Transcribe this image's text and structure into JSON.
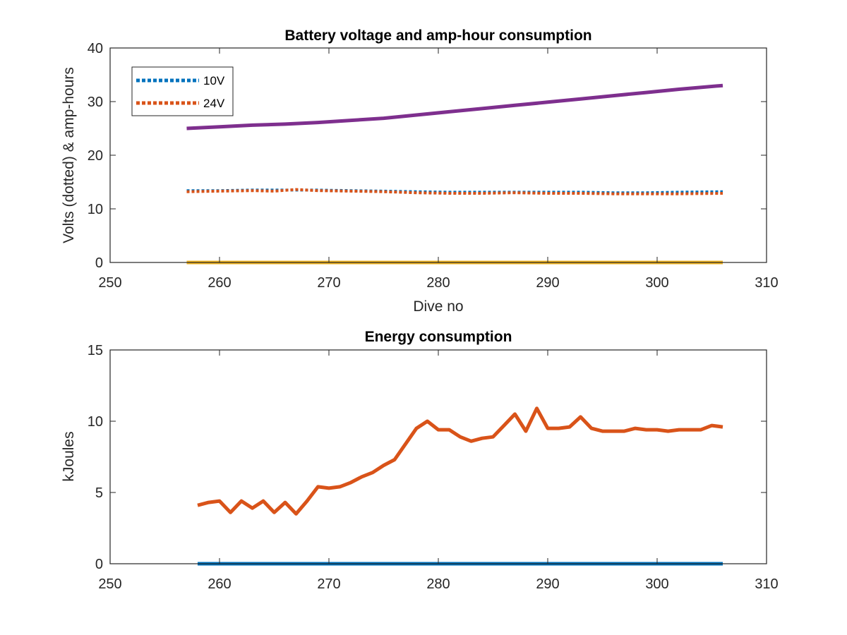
{
  "chart_data": [
    {
      "type": "line",
      "title": "Battery voltage and amp-hour consumption",
      "xlabel": "Dive no",
      "ylabel": "Volts (dotted) & amp-hours",
      "xlim": [
        250,
        310
      ],
      "ylim": [
        0,
        40
      ],
      "xticks": [
        250,
        260,
        270,
        280,
        290,
        300,
        310
      ],
      "yticks": [
        0,
        10,
        20,
        30,
        40
      ],
      "grid": false,
      "legend": {
        "position": "top-left",
        "entries": [
          "10V",
          "24V"
        ]
      },
      "colors": {
        "10V": "#0072BD",
        "24V": "#D95319",
        "amp_hours": "#7E2F8E",
        "zero": "#EDB120"
      },
      "series": [
        {
          "name": "10V",
          "style": "dotted",
          "color": "#0072BD",
          "x": [
            257,
            260,
            263,
            266,
            269,
            272,
            275,
            278,
            281,
            284,
            287,
            290,
            293,
            296,
            299,
            302,
            306
          ],
          "y": [
            13.4,
            13.4,
            13.5,
            13.5,
            13.5,
            13.4,
            13.3,
            13.2,
            13.1,
            13.1,
            13.1,
            13.1,
            13.1,
            13.0,
            13.0,
            13.1,
            13.2
          ]
        },
        {
          "name": "24V",
          "style": "dotted",
          "color": "#D95319",
          "x": [
            257,
            260,
            263,
            265,
            267,
            269,
            272,
            275,
            278,
            281,
            284,
            287,
            290,
            293,
            296,
            299,
            302,
            306
          ],
          "y": [
            13.2,
            13.3,
            13.4,
            13.3,
            13.6,
            13.4,
            13.3,
            13.2,
            13.0,
            12.9,
            12.9,
            13.0,
            12.9,
            12.9,
            12.8,
            12.8,
            12.8,
            12.9
          ]
        },
        {
          "style": "solid",
          "color": "#7E2F8E",
          "x": [
            257,
            260,
            263,
            266,
            269,
            272,
            275,
            278,
            281,
            284,
            287,
            290,
            293,
            296,
            299,
            302,
            306
          ],
          "y": [
            25.0,
            25.3,
            25.6,
            25.8,
            26.1,
            26.5,
            26.9,
            27.5,
            28.1,
            28.7,
            29.3,
            29.9,
            30.5,
            31.1,
            31.7,
            32.3,
            33.0
          ]
        },
        {
          "style": "solid",
          "color": "#EDB120",
          "x": [
            257,
            306
          ],
          "y": [
            0,
            0
          ]
        }
      ]
    },
    {
      "type": "line",
      "title": "Energy consumption",
      "xlabel": "",
      "ylabel": "kJoules",
      "xlim": [
        250,
        310
      ],
      "ylim": [
        0,
        15
      ],
      "xticks": [
        250,
        260,
        270,
        280,
        290,
        300,
        310
      ],
      "yticks": [
        0,
        5,
        10,
        15
      ],
      "grid": false,
      "series": [
        {
          "style": "solid",
          "color": "#D95319",
          "x": [
            258,
            259,
            260,
            261,
            262,
            263,
            264,
            265,
            266,
            267,
            268,
            269,
            270,
            271,
            272,
            273,
            274,
            275,
            276,
            277,
            278,
            279,
            280,
            281,
            282,
            283,
            284,
            285,
            286,
            287,
            288,
            289,
            290,
            291,
            292,
            293,
            294,
            295,
            296,
            297,
            298,
            299,
            300,
            301,
            302,
            303,
            304,
            305,
            306
          ],
          "y": [
            4.1,
            4.3,
            4.4,
            3.6,
            4.4,
            3.9,
            4.4,
            3.6,
            4.3,
            3.5,
            4.4,
            5.4,
            5.3,
            5.4,
            5.7,
            6.1,
            6.4,
            6.9,
            7.3,
            8.4,
            9.5,
            10.0,
            9.4,
            9.4,
            8.9,
            8.6,
            8.8,
            8.9,
            9.7,
            10.5,
            9.3,
            10.9,
            9.5,
            9.5,
            9.6,
            10.3,
            9.5,
            9.3,
            9.3,
            9.3,
            9.5,
            9.4,
            9.4,
            9.3,
            9.4,
            9.4,
            9.4,
            9.7,
            9.6
          ]
        },
        {
          "style": "solid",
          "color": "#0072BD",
          "x": [
            258,
            306
          ],
          "y": [
            0,
            0
          ]
        }
      ]
    }
  ]
}
